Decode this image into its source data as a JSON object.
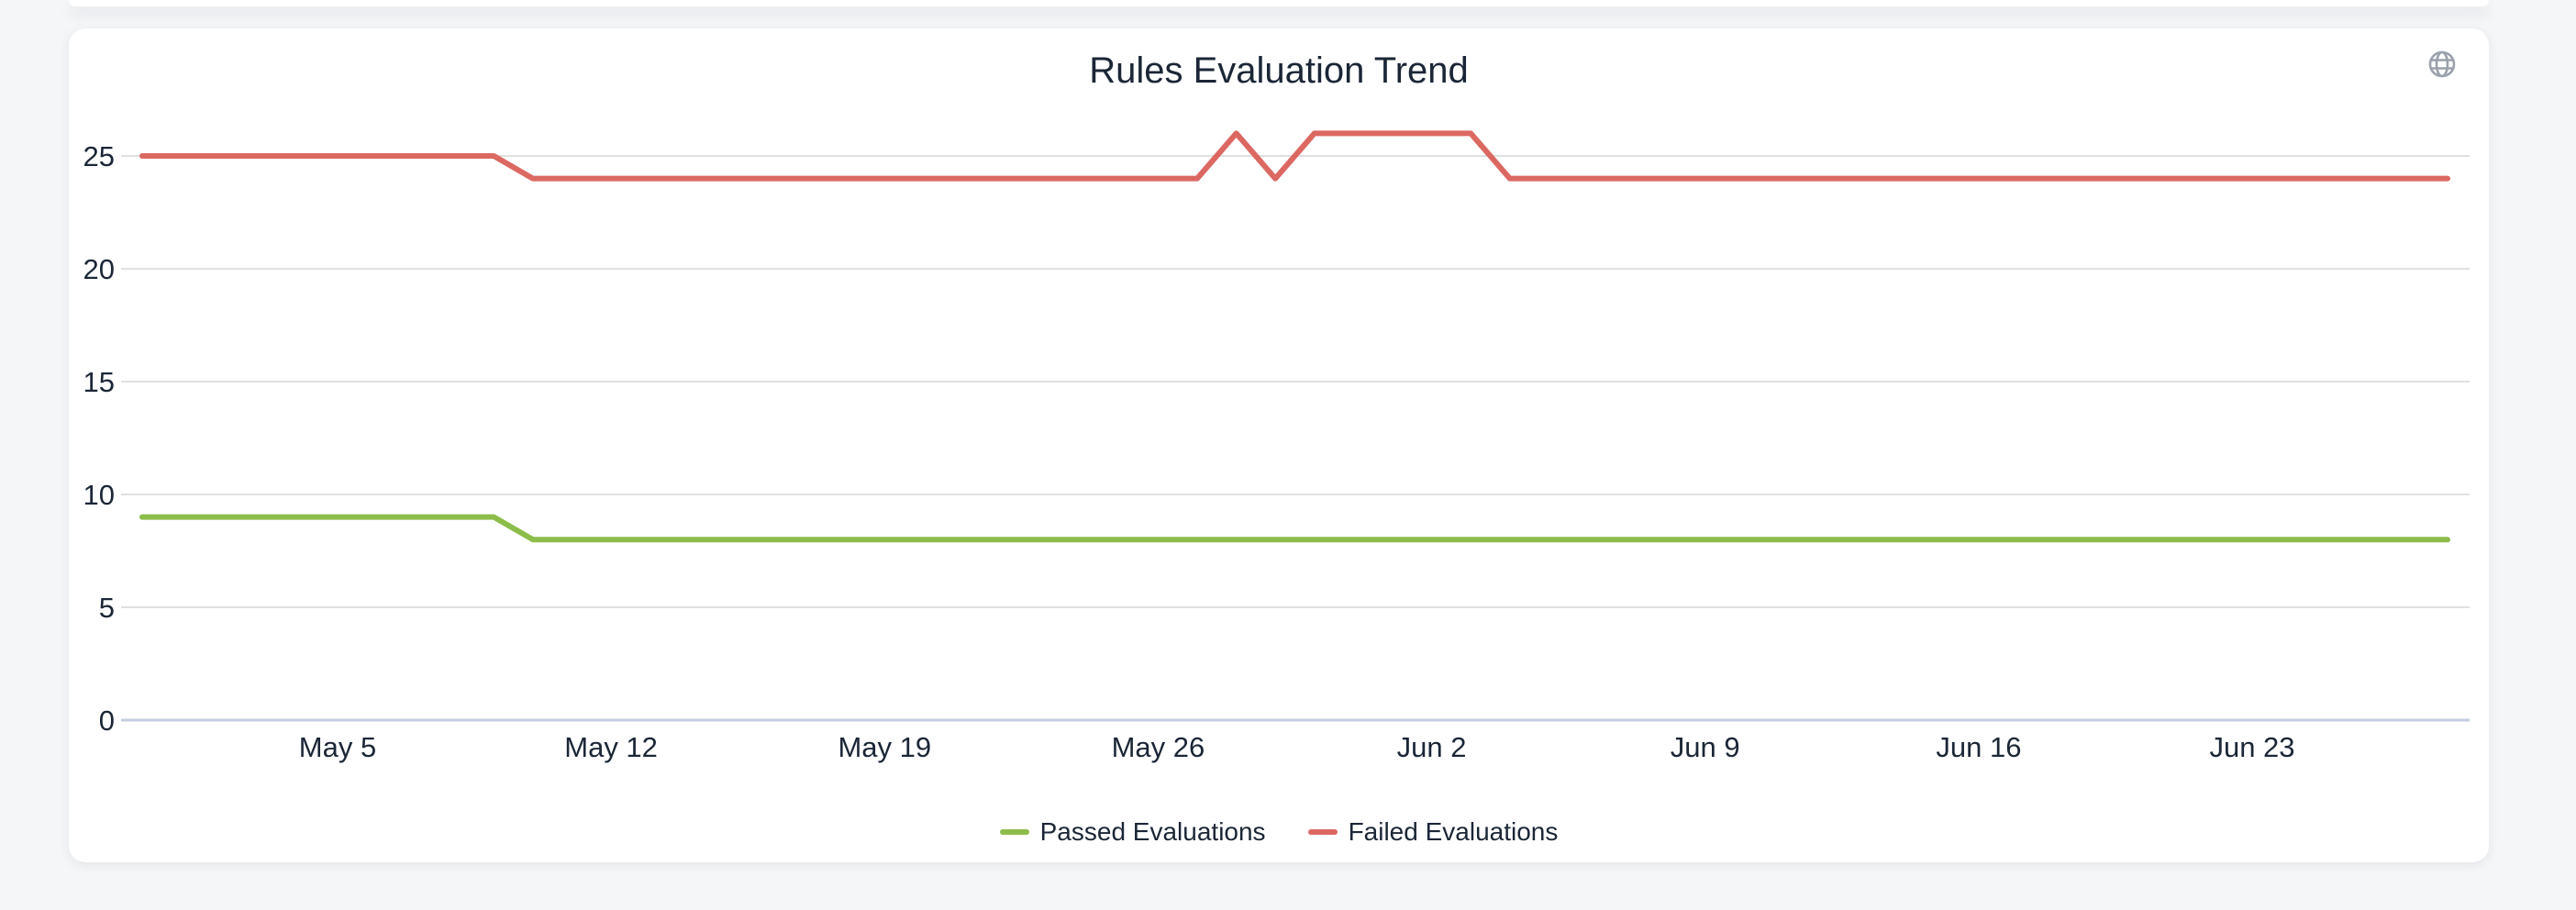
{
  "card": {
    "title": "Rules Evaluation Trend"
  },
  "icons": {
    "globe": "globe-icon"
  },
  "colors": {
    "page_bg": "#f5f6f8",
    "card_bg": "#ffffff",
    "text": "#1b2637",
    "grid": "#e0e0e0",
    "axis_line": "#c3cde2",
    "icon_gray": "#9aa1ab",
    "passed": "#8cbd4a",
    "failed": "#dc6862"
  },
  "chart_data": {
    "type": "line",
    "title": "Rules Evaluation Trend",
    "xlabel": "",
    "ylabel": "",
    "ylim": [
      0,
      25
    ],
    "grid": "horizontal",
    "legend_position": "bottom",
    "y_ticks": [
      0,
      5,
      10,
      15,
      20,
      25
    ],
    "x_tick_labels": [
      "May 5",
      "May 12",
      "May 19",
      "May 26",
      "Jun 2",
      "Jun 9",
      "Jun 16",
      "Jun 23"
    ],
    "x": [
      "Apr 30",
      "May 1",
      "May 2",
      "May 3",
      "May 4",
      "May 5",
      "May 6",
      "May 7",
      "May 8",
      "May 9",
      "May 10",
      "May 11",
      "May 12",
      "May 13",
      "May 14",
      "May 15",
      "May 16",
      "May 17",
      "May 18",
      "May 19",
      "May 20",
      "May 21",
      "May 22",
      "May 23",
      "May 24",
      "May 25",
      "May 26",
      "May 27",
      "May 28",
      "May 29",
      "May 30",
      "May 31",
      "Jun 1",
      "Jun 2",
      "Jun 3",
      "Jun 4",
      "Jun 5",
      "Jun 6",
      "Jun 7",
      "Jun 8",
      "Jun 9",
      "Jun 10",
      "Jun 11",
      "Jun 12",
      "Jun 13",
      "Jun 14",
      "Jun 15",
      "Jun 16",
      "Jun 17",
      "Jun 18",
      "Jun 19",
      "Jun 20",
      "Jun 21",
      "Jun 22",
      "Jun 23",
      "Jun 24",
      "Jun 25",
      "Jun 26",
      "Jun 27",
      "Jun 28"
    ],
    "series": [
      {
        "name": "Passed Evaluations",
        "color": "#8cbd4a",
        "values": [
          9,
          9,
          9,
          9,
          9,
          9,
          9,
          9,
          9,
          9,
          8,
          8,
          8,
          8,
          8,
          8,
          8,
          8,
          8,
          8,
          8,
          8,
          8,
          8,
          8,
          8,
          8,
          8,
          8,
          8,
          8,
          8,
          8,
          8,
          8,
          8,
          8,
          8,
          8,
          8,
          8,
          8,
          8,
          8,
          8,
          8,
          8,
          8,
          8,
          8,
          8,
          8,
          8,
          8,
          8,
          8,
          8,
          8,
          8,
          8
        ]
      },
      {
        "name": "Failed Evaluations",
        "color": "#dc6862",
        "values": [
          25,
          25,
          25,
          25,
          25,
          25,
          25,
          25,
          25,
          25,
          24,
          24,
          24,
          24,
          24,
          24,
          24,
          24,
          24,
          24,
          24,
          24,
          24,
          24,
          24,
          24,
          24,
          24,
          26,
          24,
          26,
          26,
          26,
          26,
          26,
          24,
          24,
          24,
          24,
          24,
          24,
          24,
          24,
          24,
          24,
          24,
          24,
          24,
          24,
          24,
          24,
          24,
          24,
          24,
          24,
          24,
          24,
          24,
          24,
          24
        ]
      }
    ]
  }
}
